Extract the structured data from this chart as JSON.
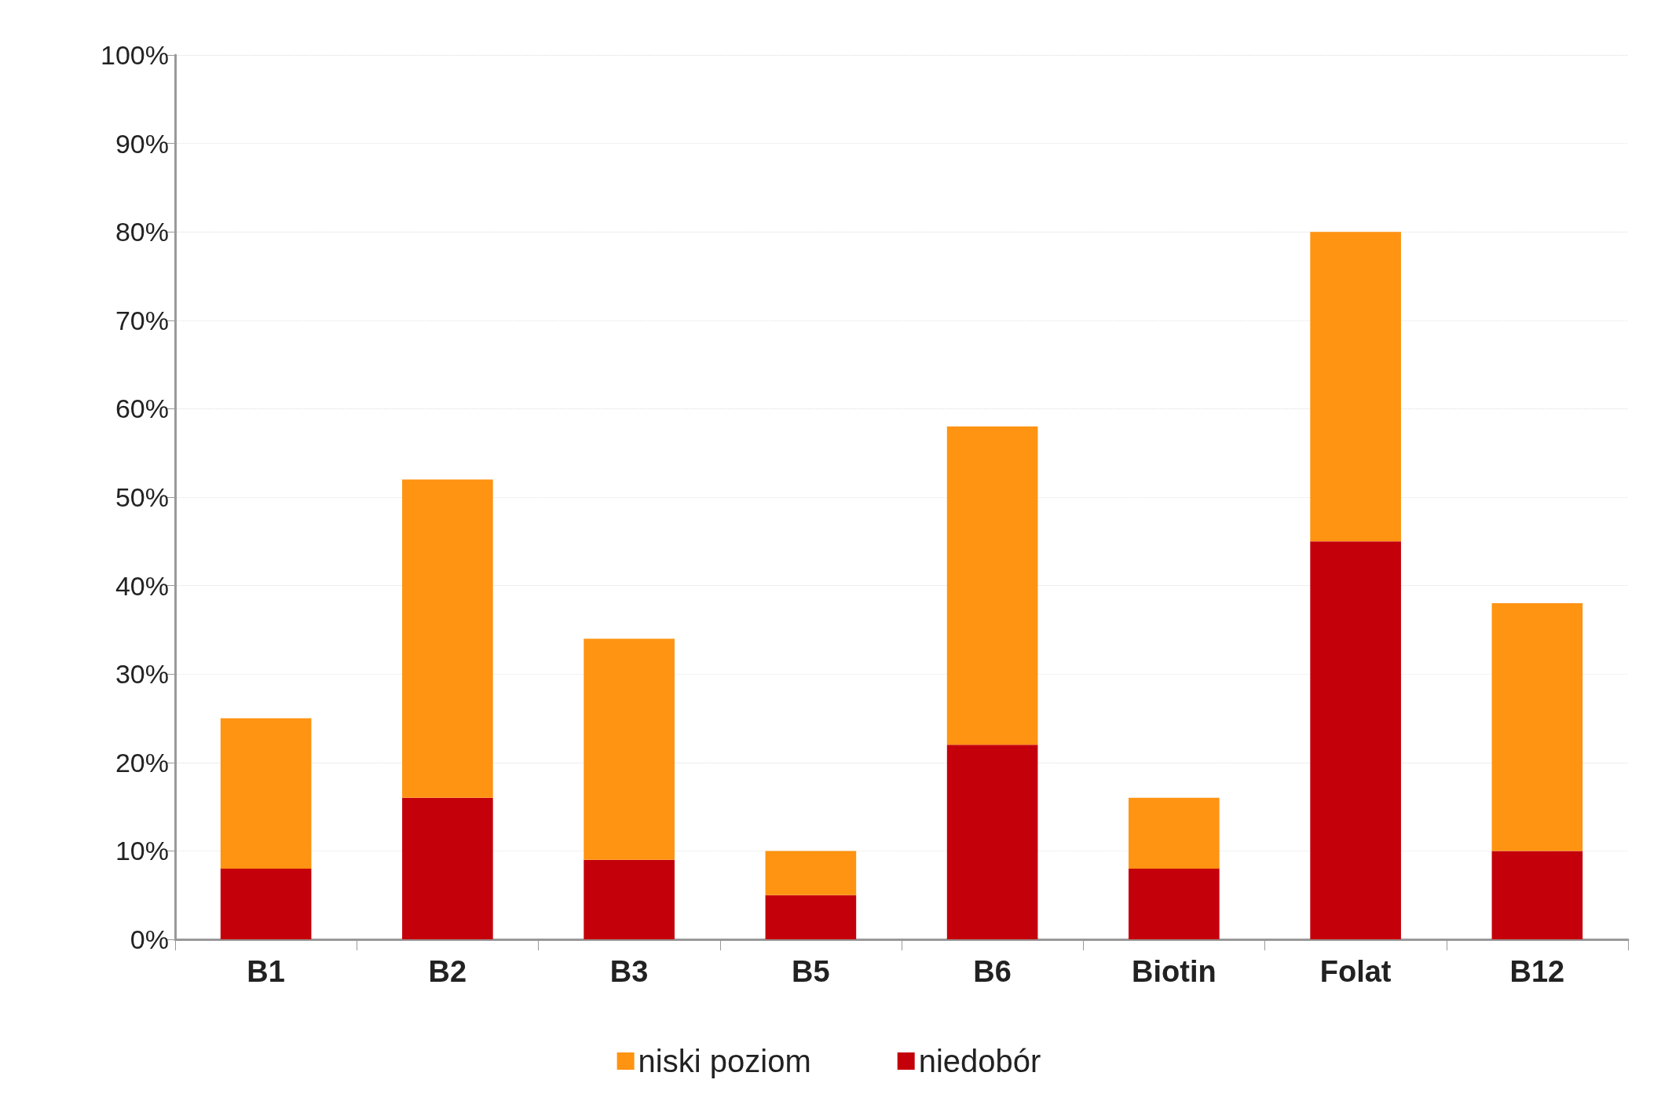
{
  "chart_data": {
    "type": "bar",
    "stacked": true,
    "categories": [
      "B1",
      "B2",
      "B3",
      "B5",
      "B6",
      "Biotin",
      "Folat",
      "B12"
    ],
    "series": [
      {
        "name": "niedobór",
        "color": "#c4000b",
        "values": [
          8,
          16,
          9,
          5,
          22,
          8,
          45,
          10
        ]
      },
      {
        "name": "niski poziom",
        "color": "#ff9312",
        "values": [
          17,
          36,
          25,
          5,
          36,
          8,
          35,
          28
        ]
      }
    ],
    "ylim": [
      0,
      100
    ],
    "yticks": [
      {
        "value": 0,
        "label": "0%"
      },
      {
        "value": 10,
        "label": "10%"
      },
      {
        "value": 20,
        "label": "20%"
      },
      {
        "value": 30,
        "label": "30%"
      },
      {
        "value": 40,
        "label": "40%"
      },
      {
        "value": 50,
        "label": "50%"
      },
      {
        "value": 60,
        "label": "60%"
      },
      {
        "value": 70,
        "label": "70%"
      },
      {
        "value": 80,
        "label": "80%"
      },
      {
        "value": 90,
        "label": "90%"
      },
      {
        "value": 100,
        "label": "100%"
      }
    ],
    "grid": "y",
    "legend": "bottom"
  }
}
